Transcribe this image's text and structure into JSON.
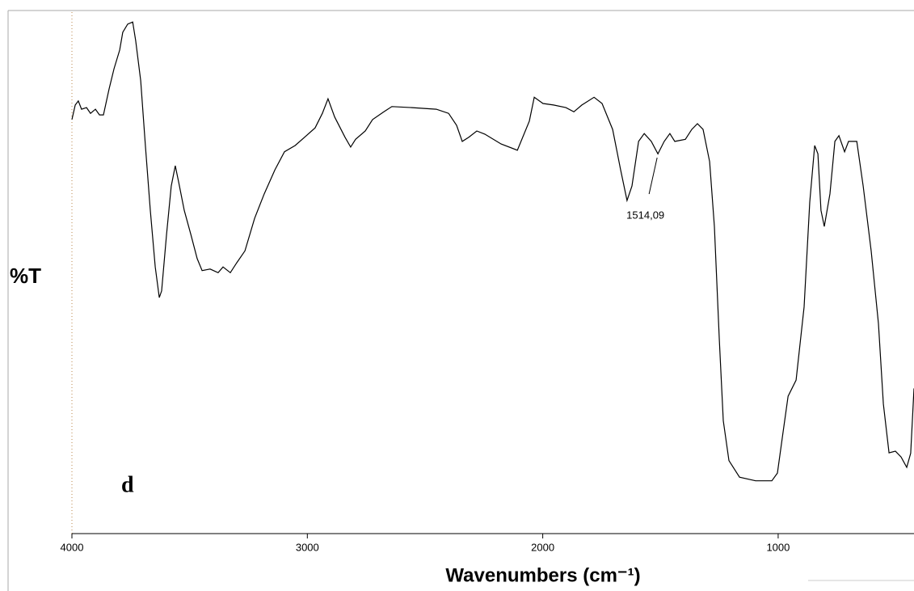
{
  "chart_data": {
    "type": "line",
    "ylabel": "%T",
    "xlabel": "Wavenumbers (cm⁻¹)",
    "panel_label": "d",
    "color": "#000000",
    "xlim": [
      4000,
      423
    ],
    "ylim": [
      0,
      100
    ],
    "xticks": [
      4000,
      3000,
      2000,
      1000
    ],
    "annotations": [
      {
        "text": "1514,09",
        "x": 1514.09
      }
    ],
    "x": [
      4000,
      3986,
      3973,
      3959,
      3938,
      3921,
      3900,
      3883,
      3866,
      3842,
      3821,
      3797,
      3784,
      3763,
      3742,
      3729,
      3708,
      3688,
      3667,
      3646,
      3629,
      3619,
      3598,
      3578,
      3561,
      3547,
      3523,
      3495,
      3468,
      3447,
      3413,
      3379,
      3358,
      3327,
      3300,
      3265,
      3224,
      3183,
      3138,
      3097,
      3052,
      3004,
      2967,
      2936,
      2912,
      2884,
      2840,
      2816,
      2795,
      2754,
      2723,
      2675,
      2641,
      2555,
      2452,
      2400,
      2366,
      2342,
      2314,
      2280,
      2246,
      2177,
      2108,
      2057,
      2036,
      1999,
      1954,
      1902,
      1868,
      1834,
      1782,
      1748,
      1703,
      1669,
      1642,
      1621,
      1593,
      1569,
      1539,
      1511,
      1484,
      1460,
      1439,
      1394,
      1367,
      1343,
      1319,
      1291,
      1271,
      1250,
      1233,
      1209,
      1164,
      1096,
      1027,
      1003,
      982,
      958,
      924,
      890,
      866,
      845,
      831,
      818,
      804,
      780,
      759,
      742,
      718,
      701,
      666,
      639,
      605,
      574,
      553,
      529,
      502,
      478,
      454,
      437,
      423
    ],
    "values": [
      79.3,
      82.1,
      82.9,
      81.3,
      81.6,
      80.5,
      81.3,
      80.2,
      80.2,
      85.2,
      89.1,
      92.7,
      96.1,
      97.7,
      98.1,
      94.5,
      86.8,
      74.3,
      61.8,
      50.9,
      45.0,
      46.3,
      57.2,
      66.5,
      70.4,
      67.3,
      61.8,
      57.2,
      52.5,
      50.2,
      50.5,
      49.8,
      50.9,
      49.8,
      51.7,
      54.0,
      60.3,
      65.0,
      69.6,
      73.1,
      74.3,
      76.2,
      77.7,
      80.5,
      83.3,
      79.8,
      75.9,
      74.0,
      75.5,
      77.1,
      79.3,
      80.8,
      81.8,
      81.6,
      81.3,
      80.5,
      78.2,
      75.1,
      75.9,
      77.1,
      76.5,
      74.6,
      73.4,
      79.0,
      83.6,
      82.4,
      82.1,
      81.6,
      80.8,
      82.1,
      83.6,
      82.4,
      77.4,
      69.6,
      63.7,
      66.5,
      75.1,
      76.6,
      75.1,
      72.7,
      75.1,
      76.6,
      75.1,
      75.5,
      77.4,
      78.5,
      77.4,
      71.2,
      58.7,
      36.9,
      21.3,
      13.6,
      10.4,
      9.7,
      9.7,
      11.2,
      18.2,
      26.0,
      29.1,
      43.2,
      63.4,
      74.3,
      72.7,
      61.8,
      58.7,
      65.0,
      75.1,
      76.2,
      73.1,
      75.1,
      75.1,
      66.5,
      54.0,
      40.0,
      24.5,
      15.1,
      15.4,
      14.3,
      12.3,
      15.0,
      27.5
    ]
  }
}
